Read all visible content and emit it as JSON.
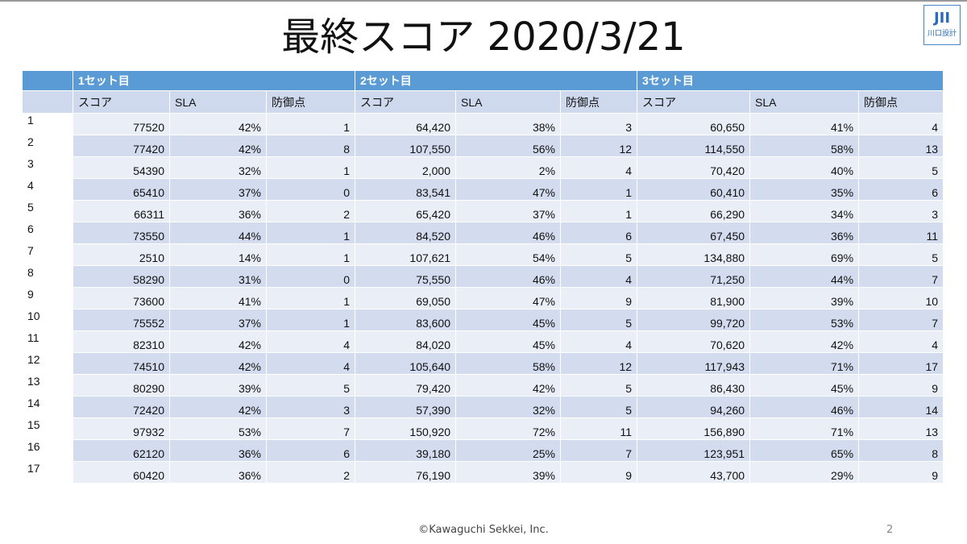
{
  "header": {
    "title": "最終スコア 2020/3/21"
  },
  "logo": {
    "mark": "JII",
    "text": "川口設計"
  },
  "table": {
    "groups": [
      "1セット目",
      "2セット目",
      "3セット目"
    ],
    "columns": [
      "スコア",
      "SLA",
      "防御点",
      "スコア",
      "SLA",
      "防御点",
      "スコア",
      "SLA",
      "防御点"
    ],
    "rows": [
      [
        "1",
        "77520",
        "42%",
        "1",
        "64,420",
        "38%",
        "3",
        "60,650",
        "41%",
        "4"
      ],
      [
        "2",
        "77420",
        "42%",
        "8",
        "107,550",
        "56%",
        "12",
        "114,550",
        "58%",
        "13"
      ],
      [
        "3",
        "54390",
        "32%",
        "1",
        "2,000",
        "2%",
        "4",
        "70,420",
        "40%",
        "5"
      ],
      [
        "4",
        "65410",
        "37%",
        "0",
        "83,541",
        "47%",
        "1",
        "60,410",
        "35%",
        "6"
      ],
      [
        "5",
        "66311",
        "36%",
        "2",
        "65,420",
        "37%",
        "1",
        "66,290",
        "34%",
        "3"
      ],
      [
        "6",
        "73550",
        "44%",
        "1",
        "84,520",
        "46%",
        "6",
        "67,450",
        "36%",
        "11"
      ],
      [
        "7",
        "2510",
        "14%",
        "1",
        "107,621",
        "54%",
        "5",
        "134,880",
        "69%",
        "5"
      ],
      [
        "8",
        "58290",
        "31%",
        "0",
        "75,550",
        "46%",
        "4",
        "71,250",
        "44%",
        "7"
      ],
      [
        "9",
        "73600",
        "41%",
        "1",
        "69,050",
        "47%",
        "9",
        "81,900",
        "39%",
        "10"
      ],
      [
        "10",
        "75552",
        "37%",
        "1",
        "83,600",
        "45%",
        "5",
        "99,720",
        "53%",
        "7"
      ],
      [
        "11",
        "82310",
        "42%",
        "4",
        "84,020",
        "45%",
        "4",
        "70,620",
        "42%",
        "4"
      ],
      [
        "12",
        "74510",
        "42%",
        "4",
        "105,640",
        "58%",
        "12",
        "117,943",
        "71%",
        "17"
      ],
      [
        "13",
        "80290",
        "39%",
        "5",
        "79,420",
        "42%",
        "5",
        "86,430",
        "45%",
        "9"
      ],
      [
        "14",
        "72420",
        "42%",
        "3",
        "57,390",
        "32%",
        "5",
        "94,260",
        "46%",
        "14"
      ],
      [
        "15",
        "97932",
        "53%",
        "7",
        "150,920",
        "72%",
        "11",
        "156,890",
        "71%",
        "13"
      ],
      [
        "16",
        "62120",
        "36%",
        "6",
        "39,180",
        "25%",
        "7",
        "123,951",
        "65%",
        "8"
      ],
      [
        "17",
        "60420",
        "36%",
        "2",
        "76,190",
        "39%",
        "9",
        "43,700",
        "29%",
        "9"
      ]
    ]
  },
  "footer": {
    "copyright": "©Kawaguchi Sekkei, Inc.",
    "page": "2"
  }
}
